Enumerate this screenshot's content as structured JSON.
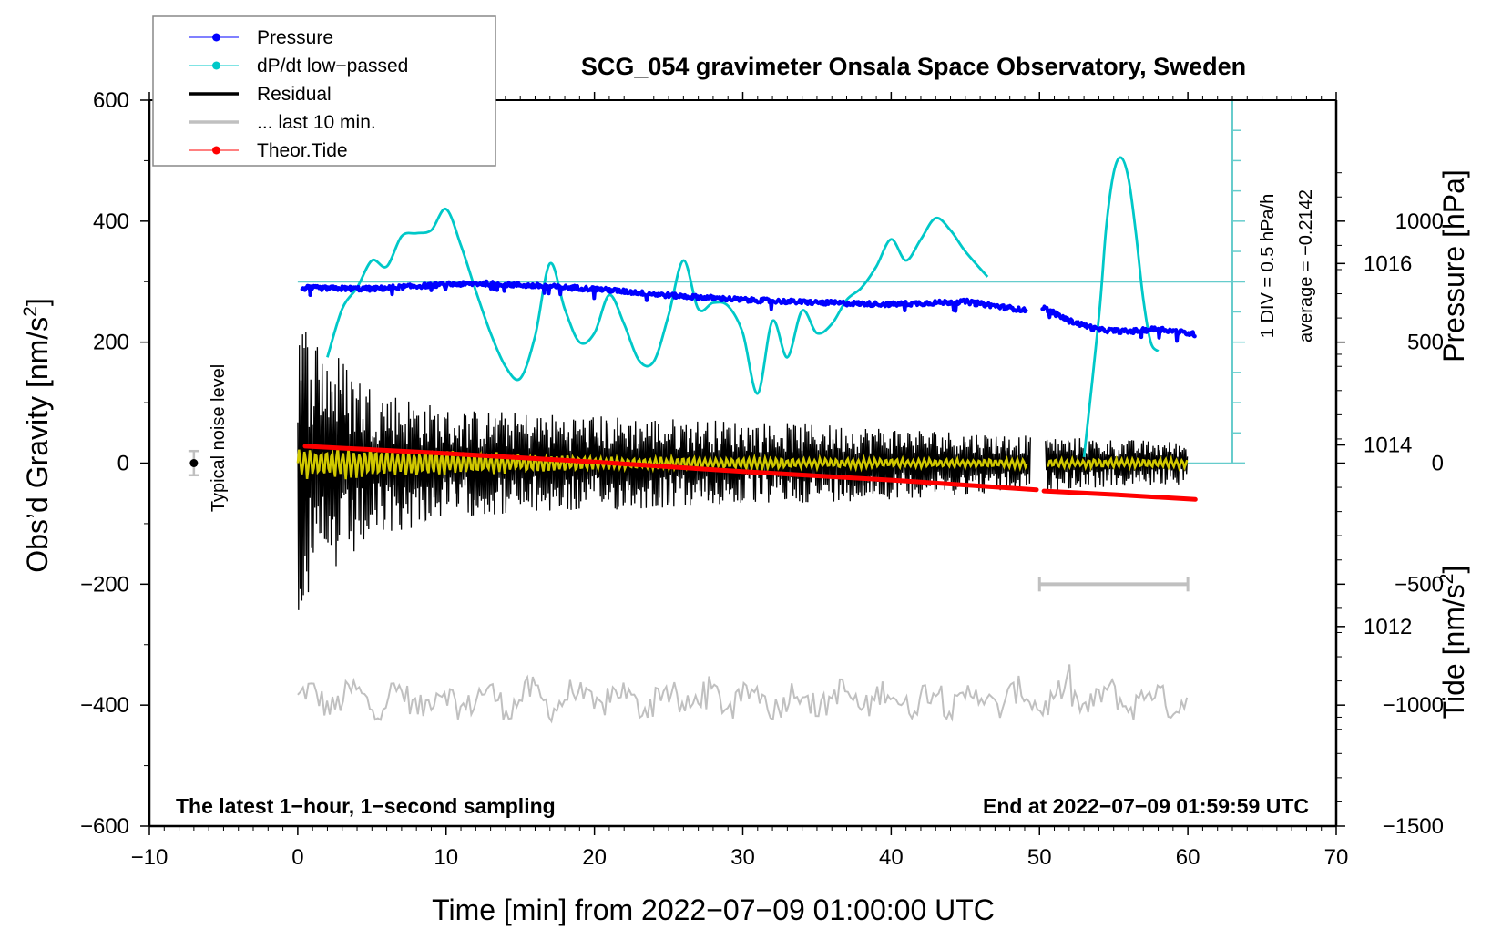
{
  "chart_data": {
    "type": "line",
    "title": "SCG_054 gravimeter Onsala Space Observatory, Sweden",
    "xlabel": "Time [min] from 2022−07−09 01:00:00 UTC",
    "ylabel": "Obs’d Gravity [nm/s",
    "ylabel_sup": "2",
    "ylabel_close": "]",
    "xlim": [
      -10,
      70
    ],
    "ylim": [
      -600,
      600
    ],
    "x_ticks": [
      -10,
      0,
      10,
      20,
      30,
      40,
      50,
      60,
      70
    ],
    "x_tick_labels": [
      "−10",
      "0",
      "10",
      "20",
      "30",
      "40",
      "50",
      "60",
      "70"
    ],
    "y_ticks": [
      -600,
      -400,
      -200,
      0,
      200,
      400,
      600
    ],
    "y_tick_labels": [
      "−600",
      "−400",
      "−200",
      "0",
      "200",
      "400",
      "600"
    ],
    "right_axes": {
      "pressure": {
        "label": "Pressure [hPa]",
        "ticks": [
          1012,
          1014,
          1016
        ],
        "tick_labels": [
          "1012",
          "1014",
          "1016"
        ],
        "range": [
          1009.8,
          1017.8
        ]
      },
      "tide": {
        "label": "Tide [nm/s",
        "label_sup": "2",
        "label_close": "]",
        "ticks": [
          -1500,
          -1000,
          -500,
          0,
          500,
          1000
        ],
        "tick_labels": [
          "−1500",
          "−1000",
          "−500",
          "0",
          "500",
          "1000"
        ],
        "range": [
          -1500,
          1500
        ]
      }
    },
    "dpdt_scale": {
      "label_div": "1 DIV = 0.5 hPa/h",
      "label_avg": "average = −0.2142",
      "average": -0.2142,
      "div_hPa_per_h": 0.5,
      "baseline_gravity_units": 300
    },
    "legend": [
      {
        "name": "Pressure",
        "color": "#0000ff",
        "style": "line-dot"
      },
      {
        "name": "dP/dt low−passed",
        "color": "#00c8c8",
        "style": "line-dot"
      },
      {
        "name": "Residual",
        "color": "#000000",
        "style": "line"
      },
      {
        "name": "... last 10 min.",
        "color": "#c0c0c0",
        "style": "line"
      },
      {
        "name": "Theor.Tide",
        "color": "#ff0000",
        "style": "line-dot"
      }
    ],
    "legend_position": "top-left",
    "annotations": {
      "bottom_left": "The latest 1−hour, 1−second sampling",
      "bottom_right": "End at 2022−07−09 01:59:59 UTC",
      "noise_label": "Typical noise level",
      "noise_marker": {
        "x": -7,
        "y": 0,
        "err": 20
      }
    },
    "series": [
      {
        "name": "Pressure",
        "unit": "hPa",
        "color": "#0000ff",
        "segments": [
          {
            "x": [
              0.3,
              5,
              10,
              13,
              20,
              25,
              30,
              35,
              40,
              45,
              49.2
            ],
            "y": [
              1015.73,
              1015.72,
              1015.77,
              1015.78,
              1015.72,
              1015.65,
              1015.6,
              1015.57,
              1015.55,
              1015.58,
              1015.48
            ]
          },
          {
            "x": [
              50.2,
              52,
              54,
              56,
              58,
              60.5
            ],
            "y": [
              1015.52,
              1015.37,
              1015.27,
              1015.25,
              1015.28,
              1015.22
            ]
          }
        ]
      },
      {
        "name": "dP/dt low-passed",
        "unit": "gravity-axis units (scaled)",
        "color": "#00c8c8",
        "segments": [
          {
            "x": [
              2,
              3,
              4,
              5,
              6,
              7,
              8,
              9,
              10,
              11,
              12,
              13,
              14,
              15,
              16,
              17,
              18,
              19,
              20,
              21,
              22,
              23,
              24,
              25,
              26,
              27,
              28,
              29,
              30,
              31,
              32,
              33,
              34,
              35,
              36,
              37,
              38,
              39,
              40,
              41,
              42,
              43,
              44,
              45,
              46.5
            ],
            "y": [
              175,
              255,
              290,
              335,
              325,
              375,
              380,
              385,
              420,
              360,
              285,
              215,
              160,
              140,
              210,
              330,
              255,
              200,
              215,
              278,
              230,
              170,
              168,
              245,
              335,
              255,
              265,
              260,
              215,
              115,
              235,
              175,
              252,
              215,
              230,
              270,
              290,
              325,
              370,
              335,
              370,
              405,
              385,
              350,
              308
            ]
          },
          {
            "x": [
              53,
              54,
              54.5,
              55,
              55.5,
              56,
              56.5,
              57,
              57.5,
              58
            ],
            "y": [
              10,
              240,
              390,
              480,
              505,
              470,
              380,
              270,
              200,
              185
            ]
          }
        ]
      },
      {
        "name": "Residual",
        "unit": "nm/s^2",
        "color": "#000000",
        "description": "Oscillating residual centered at 0; amplitude envelope decays from ~±250 at t=0–2 min to ~±40 by 40–60 min; gap ~49.5–50.5 min",
        "envelope": {
          "x": [
            0,
            2,
            5,
            10,
            20,
            30,
            40,
            50,
            60
          ],
          "amplitude": [
            250,
            200,
            130,
            90,
            80,
            70,
            60,
            45,
            35
          ]
        },
        "x_range": [
          0,
          60
        ]
      },
      {
        "name": "Residual (yellow low-passed)",
        "unit": "nm/s^2",
        "color": "#d0c800",
        "envelope": {
          "x": [
            0,
            10,
            20,
            40,
            60
          ],
          "amplitude": [
            30,
            22,
            12,
            8,
            8
          ]
        },
        "x_range": [
          0,
          60
        ]
      },
      {
        "name": "... last 10 min.",
        "unit": "nm/s^2 (offset −390)",
        "color": "#c0c0c0",
        "description": "Last 10 minutes of residual replotted stretched over 0–60 min, offset to about −390",
        "offset": -390,
        "amplitude": 35,
        "range_bar": {
          "x": [
            50,
            60
          ],
          "y": -200
        }
      },
      {
        "name": "Theor.Tide",
        "unit": "nm/s^2 (tide axis)",
        "color": "#ff0000",
        "segments": [
          {
            "x": [
              0.5,
              10,
              20,
              30,
              40,
              49.8
            ],
            "y": [
              70,
              40,
              5,
              -35,
              -70,
              -110
            ]
          },
          {
            "x": [
              50.3,
              55,
              60.5
            ],
            "y": [
              -115,
              -130,
              -150
            ]
          }
        ]
      }
    ]
  }
}
